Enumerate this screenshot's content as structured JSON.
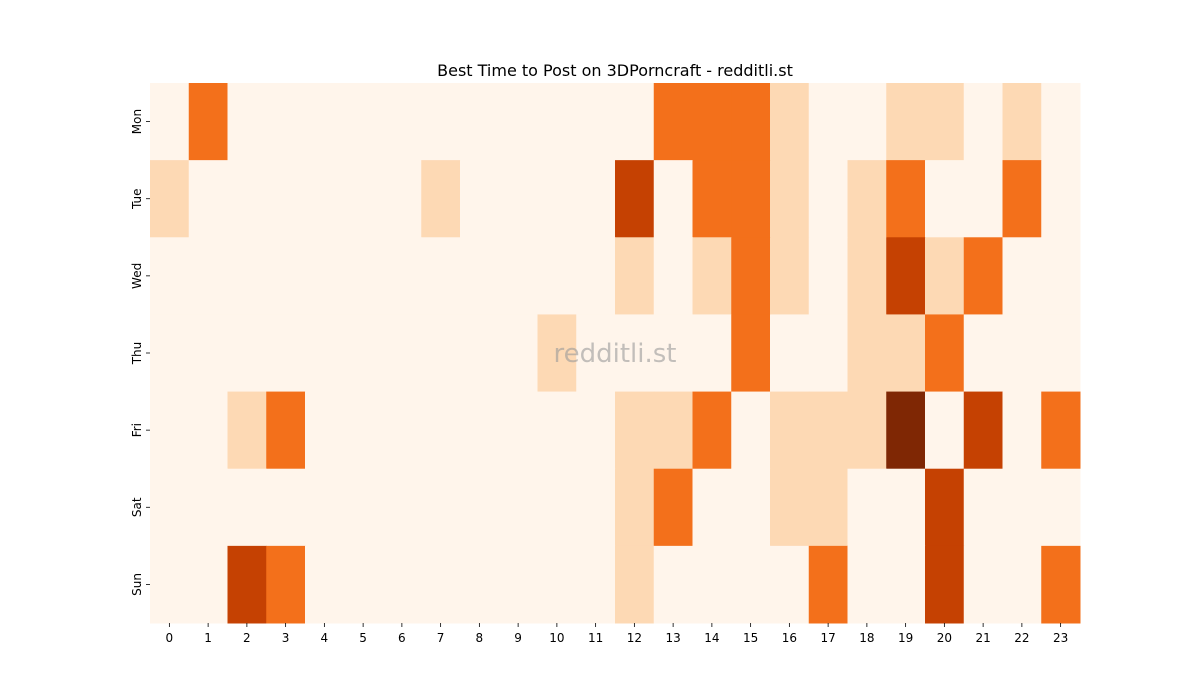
{
  "chart_data": {
    "type": "heatmap",
    "title": "Best Time to Post on 3DPorncraft - redditli.st",
    "watermark": "redditli.st",
    "x": [
      "0",
      "1",
      "2",
      "3",
      "4",
      "5",
      "6",
      "7",
      "8",
      "9",
      "10",
      "11",
      "12",
      "13",
      "14",
      "15",
      "16",
      "17",
      "18",
      "19",
      "20",
      "21",
      "22",
      "23"
    ],
    "y": [
      "Mon",
      "Tue",
      "Wed",
      "Thu",
      "Fri",
      "Sat",
      "Sun"
    ],
    "values": [
      [
        0,
        4,
        0,
        0,
        0,
        0,
        0,
        0,
        0,
        0,
        0,
        0,
        0,
        3,
        3,
        4,
        1,
        0,
        0,
        1,
        1,
        0,
        1,
        0
      ],
      [
        1,
        0,
        0,
        0,
        0,
        0,
        0,
        1,
        0,
        0,
        0,
        0,
        5,
        0,
        3,
        4,
        1,
        0,
        1,
        3,
        0,
        0,
        3,
        0
      ],
      [
        0,
        0,
        0,
        0,
        0,
        0,
        0,
        0,
        0,
        0,
        0,
        0,
        1,
        0,
        1,
        4,
        1,
        0,
        1,
        5,
        1,
        3,
        0,
        0
      ],
      [
        0,
        0,
        0,
        0,
        0,
        0,
        0,
        0,
        0,
        0,
        1,
        0,
        0,
        0,
        0,
        3,
        0,
        0,
        1,
        1,
        3,
        0,
        0,
        0
      ],
      [
        0,
        0,
        1,
        3,
        0,
        0,
        0,
        0,
        0,
        0,
        0,
        0,
        1,
        1,
        4,
        0,
        1,
        1,
        1,
        6,
        0,
        5,
        0,
        4
      ],
      [
        0,
        0,
        0,
        0,
        0,
        0,
        0,
        0,
        0,
        0,
        0,
        0,
        1,
        3,
        0,
        0,
        1,
        1,
        0,
        0,
        5,
        0,
        0,
        0
      ],
      [
        0,
        0,
        5,
        4,
        0,
        0,
        0,
        0,
        0,
        0,
        0,
        0,
        1,
        0,
        0,
        0,
        0,
        3,
        0,
        0,
        5,
        0,
        0,
        3
      ]
    ],
    "value_range": [
      0,
      6
    ],
    "colorscale": [
      "#fff5eb",
      "#fdd9b4",
      "#fda762",
      "#f3701b",
      "#c54102",
      "#7f2704"
    ],
    "colorbar": false,
    "grid": false
  }
}
